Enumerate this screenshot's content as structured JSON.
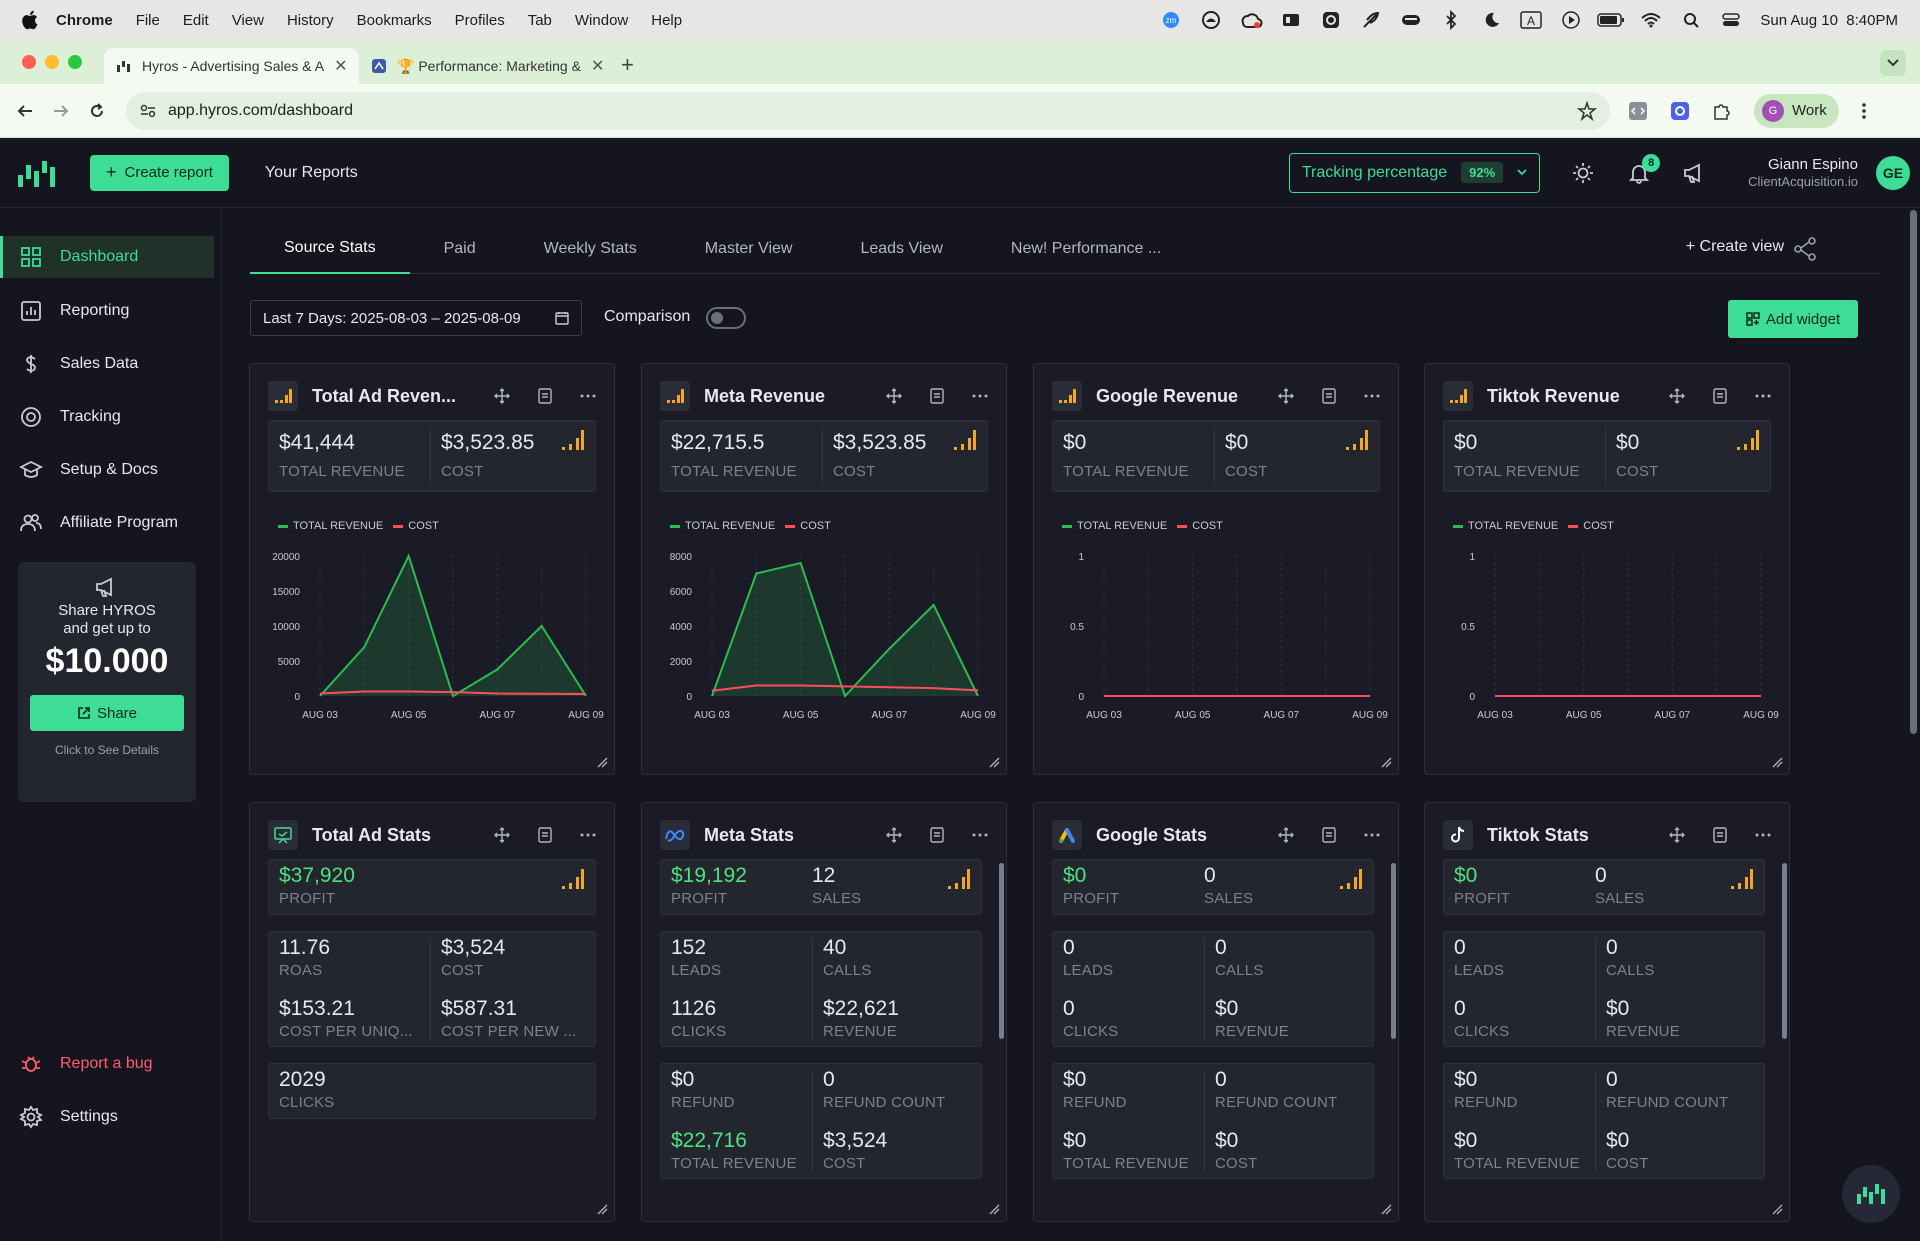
{
  "macos": {
    "app": "Chrome",
    "menus": [
      "File",
      "Edit",
      "View",
      "History",
      "Bookmarks",
      "Profiles",
      "Tab",
      "Window",
      "Help"
    ],
    "datetime": "Sun Aug 10  8:40PM"
  },
  "browser": {
    "tabs": [
      {
        "title": "Hyros - Advertising Sales & A"
      },
      {
        "title": "🏆 Performance: Marketing &"
      }
    ],
    "url": "app.hyros.com/dashboard",
    "profile": "Work",
    "profile_initial": "G"
  },
  "header": {
    "create_report": "Create report",
    "your_reports": "Your Reports",
    "tracking_label": "Tracking percentage",
    "tracking_value": "92%",
    "notifications": "8",
    "user_name": "Giann Espino",
    "user_company": "ClientAcquisition.io",
    "avatar": "GE"
  },
  "sidebar": {
    "items": [
      {
        "label": "Dashboard",
        "icon": "grid-icon"
      },
      {
        "label": "Reporting",
        "icon": "chart-icon"
      },
      {
        "label": "Sales Data",
        "icon": "dollar-icon"
      },
      {
        "label": "Tracking",
        "icon": "target-icon"
      },
      {
        "label": "Setup & Docs",
        "icon": "graduation-icon"
      },
      {
        "label": "Affiliate Program",
        "icon": "users-icon"
      }
    ],
    "promo": {
      "line1": "Share HYROS",
      "line2": "and get up to",
      "amount": "$10.000",
      "button": "Share",
      "details": "Click to See Details"
    },
    "report_bug": "Report a bug",
    "settings": "Settings"
  },
  "views": {
    "tabs": [
      "Source Stats",
      "Paid",
      "Weekly Stats",
      "Master View",
      "Leads View",
      "New! Performance ..."
    ],
    "create_view": "Create view",
    "date_range": "Last 7 Days: 2025-08-03 – 2025-08-09",
    "comparison": "Comparison",
    "add_widget": "Add widget"
  },
  "revenue_cards": [
    {
      "title": "Total Ad Reven...",
      "revenue": "$41,444",
      "cost": "$3,523.85"
    },
    {
      "title": "Meta Revenue",
      "revenue": "$22,715.5",
      "cost": "$3,523.85"
    },
    {
      "title": "Google Revenue",
      "revenue": "$0",
      "cost": "$0"
    },
    {
      "title": "Tiktok Revenue",
      "revenue": "$0",
      "cost": "$0"
    }
  ],
  "labels": {
    "total_revenue": "TOTAL REVENUE",
    "cost": "COST",
    "profit": "PROFIT",
    "sales": "SALES",
    "roas": "ROAS",
    "cost_per_uniq": "COST PER UNIQ...",
    "cost_per_new": "COST PER NEW ...",
    "clicks": "CLICKS",
    "leads": "LEADS",
    "calls": "CALLS",
    "revenue": "REVENUE",
    "refund": "REFUND",
    "refund_count": "REFUND COUNT"
  },
  "total_ad_stats": {
    "title": "Total Ad Stats",
    "profit": "$37,920",
    "roas": "11.76",
    "cost": "$3,524",
    "cost_per_uniq": "$153.21",
    "cost_per_new": "$587.31",
    "clicks": "2029"
  },
  "stat_cards": [
    {
      "title": "Meta Stats",
      "profit": "$19,192",
      "sales": "12",
      "leads": "152",
      "calls": "40",
      "clicks": "1126",
      "revenue": "$22,621",
      "refund": "$0",
      "refund_count": "0",
      "total_revenue": "$22,716",
      "cost": "$3,524",
      "icon": "meta-icon"
    },
    {
      "title": "Google Stats",
      "profit": "$0",
      "sales": "0",
      "leads": "0",
      "calls": "0",
      "clicks": "0",
      "revenue": "$0",
      "refund": "$0",
      "refund_count": "0",
      "total_revenue": "$0",
      "cost": "$0",
      "icon": "google-ads-icon"
    },
    {
      "title": "Tiktok Stats",
      "profit": "$0",
      "sales": "0",
      "leads": "0",
      "calls": "0",
      "clicks": "0",
      "revenue": "$0",
      "refund": "$0",
      "refund_count": "0",
      "total_revenue": "$0",
      "cost": "$0",
      "icon": "tiktok-icon"
    }
  ],
  "colors": {
    "accent": "#3ddc97",
    "revenue_line": "#2bbd4e",
    "cost_line": "#ff4d5e",
    "mini_bars": "#f5a623",
    "profit_green": "#4ee37e"
  },
  "chart_data": [
    {
      "type": "area",
      "title": "Total Ad Revenue",
      "x": [
        "AUG 03",
        "AUG 04",
        "AUG 05",
        "AUG 06",
        "AUG 07",
        "AUG 08",
        "AUG 09"
      ],
      "xticks": [
        "AUG 03",
        "AUG 05",
        "AUG 07",
        "AUG 09"
      ],
      "yticks": [
        0,
        5000,
        10000,
        15000,
        20000
      ],
      "ylim": [
        0,
        20000
      ],
      "series": [
        {
          "name": "TOTAL REVENUE",
          "values": [
            0,
            7000,
            20000,
            0,
            3800,
            10000,
            0
          ]
        },
        {
          "name": "COST",
          "values": [
            350,
            650,
            650,
            550,
            350,
            320,
            280
          ]
        }
      ]
    },
    {
      "type": "area",
      "title": "Meta Revenue",
      "x": [
        "AUG 03",
        "AUG 04",
        "AUG 05",
        "AUG 06",
        "AUG 07",
        "AUG 08",
        "AUG 09"
      ],
      "xticks": [
        "AUG 03",
        "AUG 05",
        "AUG 07",
        "AUG 09"
      ],
      "yticks": [
        0,
        2000,
        4000,
        6000,
        8000
      ],
      "ylim": [
        0,
        8000
      ],
      "series": [
        {
          "name": "TOTAL REVENUE",
          "values": [
            0,
            7000,
            7600,
            0,
            2700,
            5200,
            0
          ]
        },
        {
          "name": "COST",
          "values": [
            300,
            600,
            600,
            550,
            500,
            450,
            320
          ]
        }
      ]
    },
    {
      "type": "line",
      "title": "Google Revenue",
      "x": [
        "AUG 03",
        "AUG 04",
        "AUG 05",
        "AUG 06",
        "AUG 07",
        "AUG 08",
        "AUG 09"
      ],
      "xticks": [
        "AUG 03",
        "AUG 05",
        "AUG 07",
        "AUG 09"
      ],
      "yticks": [
        0,
        0.5,
        1
      ],
      "ylim": [
        0,
        1
      ],
      "series": [
        {
          "name": "TOTAL REVENUE",
          "values": [
            0,
            0,
            0,
            0,
            0,
            0,
            0
          ]
        },
        {
          "name": "COST",
          "values": [
            0,
            0,
            0,
            0,
            0,
            0,
            0
          ]
        }
      ]
    },
    {
      "type": "line",
      "title": "Tiktok Revenue",
      "x": [
        "AUG 03",
        "AUG 04",
        "AUG 05",
        "AUG 06",
        "AUG 07",
        "AUG 08",
        "AUG 09"
      ],
      "xticks": [
        "AUG 03",
        "AUG 05",
        "AUG 07",
        "AUG 09"
      ],
      "yticks": [
        0,
        0.5,
        1
      ],
      "ylim": [
        0,
        1
      ],
      "series": [
        {
          "name": "TOTAL REVENUE",
          "values": [
            0,
            0,
            0,
            0,
            0,
            0,
            0
          ]
        },
        {
          "name": "COST",
          "values": [
            0,
            0,
            0,
            0,
            0,
            0,
            0
          ]
        }
      ]
    }
  ]
}
